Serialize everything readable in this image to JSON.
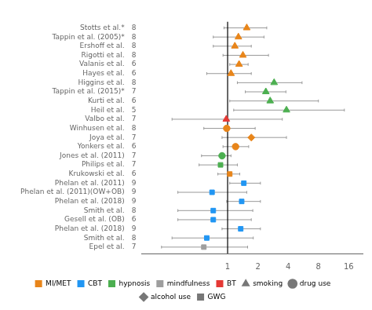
{
  "chart_data": {
    "type": "forest",
    "categories": [
      "Stotts et al.*",
      "Tappin et al. (2005)*",
      "Ershoff et al.",
      "Rigotti et al.",
      "Valanis et al.",
      "Hayes et al.",
      "Higgins et al.",
      "Tappin et al. (2015)*",
      "Kurti et al.",
      "Heil et al.",
      "Valbo et al.",
      "Winhusen et al.",
      "Joya et al.",
      "Yonkers et al.",
      "Jones et al. (2011)",
      "Philips et al.",
      "Krukowski et al.",
      "Phelan et al. (2011)",
      "Phelan et al. (2011)(OW+OB)",
      "Phelan et al. (2018)",
      "Smith et al.",
      "Gesell et al. (OB)",
      "Phelan et al. (2018)",
      "Smith et al.",
      "Epel et al."
    ],
    "n": [
      8,
      8,
      8,
      8,
      6,
      6,
      8,
      7,
      6,
      5,
      7,
      8,
      7,
      6,
      7,
      7,
      6,
      9,
      9,
      9,
      8,
      6,
      9,
      8,
      7
    ],
    "values": [
      1.55,
      1.28,
      1.18,
      1.42,
      1.3,
      1.08,
      2.9,
      2.4,
      2.65,
      3.85,
      0.97,
      0.98,
      1.72,
      1.2,
      0.88,
      0.85,
      1.05,
      1.45,
      0.7,
      1.38,
      0.72,
      0.72,
      1.35,
      0.62,
      0.58
    ],
    "ci_low": [
      0.92,
      0.72,
      0.72,
      0.9,
      1.05,
      0.62,
      1.25,
      1.5,
      1.05,
      1.15,
      0.28,
      0.58,
      0.88,
      0.9,
      0.55,
      0.52,
      0.8,
      1.05,
      0.32,
      0.98,
      0.32,
      0.32,
      0.88,
      0.28,
      0.22
    ],
    "ci_high": [
      2.45,
      2.3,
      1.72,
      2.55,
      1.6,
      1.72,
      5.5,
      3.8,
      8.0,
      14.5,
      3.5,
      1.88,
      3.85,
      1.62,
      1.08,
      1.25,
      1.32,
      2.12,
      1.55,
      2.12,
      1.78,
      1.72,
      2.12,
      1.8,
      1.58
    ],
    "colors": [
      "#E8851A",
      "#E8851A",
      "#E8851A",
      "#E8851A",
      "#E8851A",
      "#E8851A",
      "#4CAF50",
      "#4CAF50",
      "#4CAF50",
      "#4CAF50",
      "#E53935",
      "#E8851A",
      "#E8851A",
      "#E8851A",
      "#4CAF50",
      "#4CAF50",
      "#E8851A",
      "#2196F3",
      "#2196F3",
      "#2196F3",
      "#2196F3",
      "#2196F3",
      "#2196F3",
      "#2196F3",
      "#9E9E9E"
    ],
    "markers": [
      "triangle",
      "triangle",
      "triangle",
      "triangle",
      "triangle",
      "triangle",
      "triangle",
      "triangle",
      "triangle",
      "triangle",
      "triangle",
      "circle",
      "diamond",
      "circle",
      "circle",
      "square",
      "square",
      "square",
      "square",
      "square",
      "square",
      "square",
      "square",
      "square",
      "square"
    ],
    "ci_color": "#999999",
    "reference_line": 1,
    "reference_color": "black",
    "log": "x",
    "xlim": [
      0.14,
      22
    ],
    "xticks": [
      1,
      2,
      4,
      8,
      16
    ],
    "grid": false,
    "legend": "bottom",
    "legend_patches": [
      {
        "name": "MI/MET",
        "color": "#E8851A"
      },
      {
        "name": "CBT",
        "color": "#2196F3"
      },
      {
        "name": "hypnosis",
        "color": "#4CAF50"
      },
      {
        "name": "mindfulness",
        "color": "#9E9E9E"
      },
      {
        "name": "BT",
        "color": "#E53935"
      }
    ],
    "legend_markers": [
      {
        "name": "smoking",
        "marker": "triangle",
        "color": "#777777"
      },
      {
        "name": "drug use",
        "marker": "circle",
        "color": "#777777"
      },
      {
        "name": "alcohol use",
        "marker": "diamond",
        "color": "#777777"
      },
      {
        "name": "GWG",
        "marker": "square",
        "color": "#777777"
      }
    ]
  }
}
